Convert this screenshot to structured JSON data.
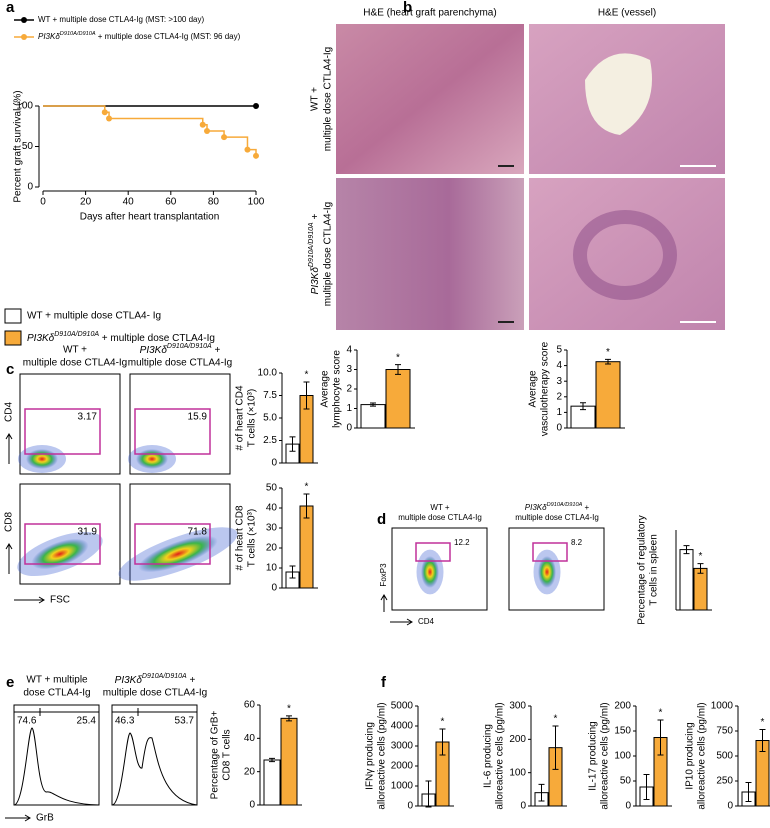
{
  "genotype": {
    "gene": "PI3Kδ",
    "allele": "D910A/D910A"
  },
  "panel_labels": [
    "a",
    "b",
    "c",
    "d",
    "e",
    "f"
  ],
  "legend": {
    "wt": "WT + multiple dose CTLA4- Ig",
    "mut_suffix": " + multiple dose CTLA4-Ig",
    "colors": [
      "#ffffff",
      "#f7aa3a"
    ]
  },
  "histology": {
    "col_titles": [
      "H&E (heart graft parenchyma)",
      "H&E (vessel)"
    ],
    "row_labels": [
      {
        "lines": [
          "WT +",
          "multiple dose CTLA4-Ig"
        ]
      },
      {
        "suffix": " +",
        "line2": "multiple dose CTLA4-Ig"
      }
    ]
  },
  "flow_c": {
    "headers": [
      {
        "lines": [
          "WT +",
          "multiple dose CTLA4-Ig"
        ]
      },
      {
        "suffix": " +",
        "line2": "multiple dose CTLA4-Ig"
      }
    ],
    "y_labels": [
      "CD4",
      "CD8"
    ],
    "x_label": "FSC",
    "gates": [
      [
        3.17,
        15.9
      ],
      [
        31.9,
        71.8
      ]
    ]
  },
  "flow_d": {
    "headers": [
      {
        "lines": [
          "WT +",
          "multiple dose CTLA4-Ig"
        ]
      },
      {
        "suffix": " +",
        "line2": "multiple dose CTLA4-Ig"
      }
    ],
    "y_label": "FoxP3",
    "x_label": "CD4",
    "gates": [
      12.2,
      8.2
    ]
  },
  "flow_e": {
    "headers": [
      {
        "lines": [
          "WT + multiple",
          "dose CTLA4-Ig"
        ]
      },
      {
        "suffix": " +",
        "line2": "multiple dose CTLA4-Ig"
      }
    ],
    "x_label": "GrB",
    "gates": [
      [
        74.6,
        25.4
      ],
      [
        46.3,
        53.7
      ]
    ]
  },
  "chart_data": [
    {
      "type": "step",
      "xlabel": "Days after heart transplantation",
      "ylabel": "Percent graft survival (%)",
      "xlim": [
        0,
        100
      ],
      "xticks": [
        0,
        20,
        40,
        60,
        80,
        100
      ],
      "ylim": [
        0,
        100
      ],
      "yticks": [
        0,
        50,
        100
      ],
      "series": [
        {
          "name": "WT + multiple dose CTLA4-Ig (MST: >100 day)",
          "color": "#000000",
          "x": [
            0,
            100
          ],
          "values": [
            100,
            100
          ]
        },
        {
          "name": " + multiple dose CTLA4-Ig (MST: 96 day)",
          "color": "#f7aa3a",
          "x": [
            0,
            29,
            31,
            75,
            77,
            85,
            96,
            100
          ],
          "values": [
            100,
            92.3,
            84.6,
            76.9,
            69.2,
            61.5,
            46.2,
            38.5
          ]
        }
      ]
    },
    {
      "type": "bar",
      "ylabel": [
        "Average",
        "lymphocyte score"
      ],
      "ylim": [
        0,
        4
      ],
      "yticks": [
        0,
        1,
        2,
        3,
        4
      ],
      "values": [
        1.2,
        3.0
      ],
      "errors": [
        0.08,
        0.25
      ],
      "colors": [
        "#ffffff",
        "#f7aa3a"
      ],
      "significance": [
        null,
        "*"
      ]
    },
    {
      "type": "bar",
      "ylabel": [
        "Average",
        "vasculotherapy score"
      ],
      "ylim": [
        0,
        5
      ],
      "yticks": [
        0,
        1,
        2,
        3,
        4,
        5
      ],
      "values": [
        1.4,
        4.25
      ],
      "errors": [
        0.22,
        0.15
      ],
      "colors": [
        "#ffffff",
        "#f7aa3a"
      ],
      "significance": [
        null,
        "*"
      ]
    },
    {
      "type": "bar",
      "ylabel": [
        "# of heart CD4",
        "T cells (×10³)"
      ],
      "ylim": [
        0,
        10
      ],
      "yticks": [
        0,
        2.5,
        {
          "value": 5,
          "label": "5.0"
        },
        7.5,
        {
          "value": 10,
          "label": "10.0"
        }
      ],
      "values": [
        2.1,
        7.5
      ],
      "errors": [
        0.8,
        1.5
      ],
      "colors": [
        "#ffffff",
        "#f7aa3a"
      ],
      "significance": [
        null,
        "*"
      ]
    },
    {
      "type": "bar",
      "ylabel": [
        "# of heart CD8",
        "T cells (×10³)"
      ],
      "ylim": [
        0,
        50
      ],
      "yticks": [
        0,
        10,
        20,
        30,
        40,
        50
      ],
      "values": [
        8,
        41
      ],
      "errors": [
        3,
        6
      ],
      "colors": [
        "#ffffff",
        "#f7aa3a"
      ],
      "significance": [
        null,
        "*"
      ]
    },
    {
      "type": "bar",
      "ylabel": [
        "Percentage of regulatory",
        "T cells in spleen"
      ],
      "ylim": [
        0,
        20
      ],
      "values": [
        15.1,
        10.4
      ],
      "errors": [
        1,
        1.2
      ],
      "colors": [
        "#ffffff",
        "#f7aa3a"
      ],
      "significance": [
        null,
        "*"
      ]
    },
    {
      "type": "bar",
      "ylabel": [
        "Percentage of GrB+",
        "CD8 T cells"
      ],
      "ylim": [
        0,
        60
      ],
      "yticks": [
        0,
        20,
        40,
        60
      ],
      "values": [
        27,
        52
      ],
      "errors": [
        1,
        1.5
      ],
      "colors": [
        "#ffffff",
        "#f7aa3a"
      ],
      "significance": [
        null,
        "*"
      ]
    },
    {
      "type": "bar",
      "ylabel": [
        "IFNγ producing",
        "alloreactive cells (pg/ml)"
      ],
      "ylim": [
        0,
        5000
      ],
      "yticks": [
        0,
        1000,
        2000,
        3000,
        4000,
        5000
      ],
      "values": [
        600,
        3200
      ],
      "errors": [
        650,
        650
      ],
      "colors": [
        "#ffffff",
        "#f7aa3a"
      ],
      "significance": [
        null,
        "*"
      ]
    },
    {
      "type": "bar",
      "ylabel": [
        "IL-6 producing",
        "alloreactive cells (pg/ml)"
      ],
      "ylim": [
        0,
        300
      ],
      "yticks": [
        0,
        100,
        200,
        300
      ],
      "values": [
        40,
        175
      ],
      "errors": [
        25,
        65
      ],
      "colors": [
        "#ffffff",
        "#f7aa3a"
      ],
      "significance": [
        null,
        "*"
      ]
    },
    {
      "type": "bar",
      "ylabel": [
        "IL-17 producing",
        "alloreactive cells (pg/ml)"
      ],
      "ylim": [
        0,
        200
      ],
      "yticks": [
        0,
        50,
        100,
        150,
        200
      ],
      "values": [
        38,
        137
      ],
      "errors": [
        25,
        35
      ],
      "colors": [
        "#ffffff",
        "#f7aa3a"
      ],
      "significance": [
        null,
        "*"
      ]
    },
    {
      "type": "bar",
      "ylabel": [
        "IP10 producing",
        "alloreactive cells (pg/ml)"
      ],
      "ylim": [
        0,
        1000
      ],
      "yticks": [
        0,
        250,
        500,
        750,
        1000
      ],
      "values": [
        140,
        655
      ],
      "errors": [
        95,
        110
      ],
      "colors": [
        "#ffffff",
        "#f7aa3a"
      ],
      "significance": [
        null,
        "*"
      ]
    }
  ]
}
